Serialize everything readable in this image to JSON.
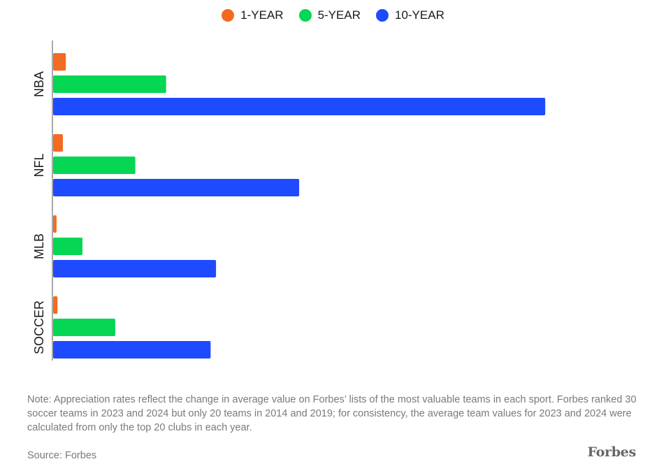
{
  "chart_data": {
    "type": "bar",
    "orientation": "horizontal",
    "categories": [
      "NBA",
      "NFL",
      "MLB",
      "SOCCER"
    ],
    "series": [
      {
        "name": "1-YEAR",
        "color": "#f26b21",
        "values": [
          26,
          20,
          7,
          9
        ]
      },
      {
        "name": "5-YEAR",
        "color": "#05d654",
        "values": [
          231,
          168,
          60,
          127
        ]
      },
      {
        "name": "10-YEAR",
        "color": "#1e4bff",
        "values": [
          1006,
          503,
          333,
          322
        ]
      }
    ],
    "xlim": [
      0,
      1250
    ],
    "grid": false,
    "legend_position": "top-center"
  },
  "note": "Note: Appreciation rates reflect the change in average value on Forbes’ lists of the most valuable teams in each sport. Forbes ranked 30 soccer teams in 2023 and 2024 but only 20 teams in 2014 and 2019; for consistency, the average team values for 2023 and 2024 were calculated from only the top 20 clubs in each year.",
  "source": "Source: Forbes",
  "brand": "Forbes"
}
